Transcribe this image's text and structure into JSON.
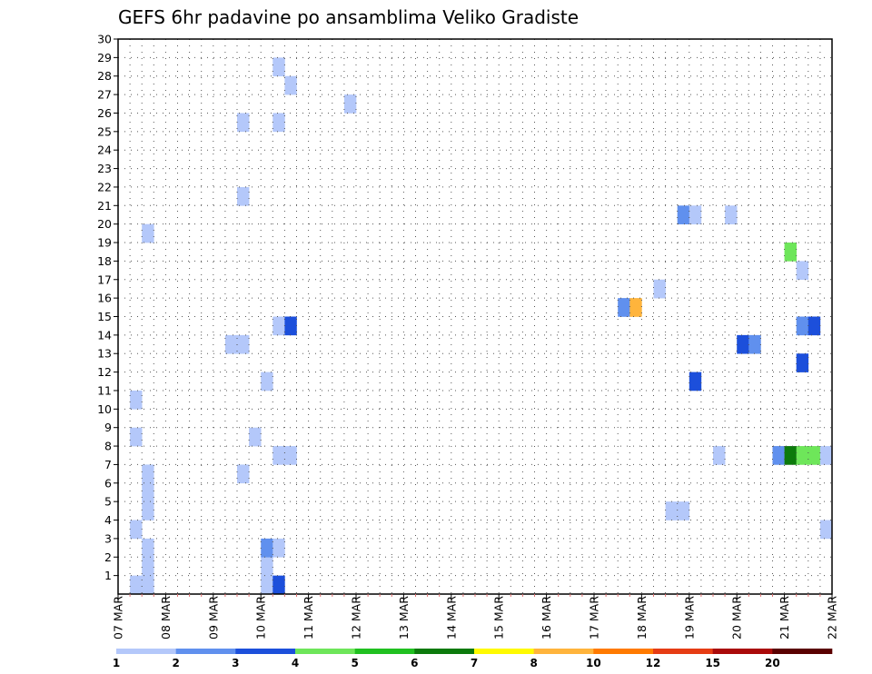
{
  "chart_data": {
    "type": "heatmap",
    "title": "GEFS 6hr padavine po ansamblima Veliko Gradiste",
    "xlabel": "",
    "ylabel": "",
    "x_tick_labels": [
      "07 MAR",
      "08 MAR",
      "09 MAR",
      "10 MAR",
      "11 MAR",
      "12 MAR",
      "13 MAR",
      "14 MAR",
      "15 MAR",
      "16 MAR",
      "17 MAR",
      "18 MAR",
      "19 MAR",
      "20 MAR",
      "21 MAR",
      "22 MAR"
    ],
    "y_tick_labels": [
      "1",
      "2",
      "3",
      "4",
      "5",
      "6",
      "7",
      "8",
      "9",
      "10",
      "11",
      "12",
      "13",
      "14",
      "15",
      "16",
      "17",
      "18",
      "19",
      "20",
      "21",
      "22",
      "23",
      "24",
      "25",
      "26",
      "27",
      "28",
      "29",
      "30"
    ],
    "xlim_days": [
      0,
      15
    ],
    "ylim": [
      0,
      30
    ],
    "time_step_hours": 6,
    "grid": "dotted",
    "legend": {
      "placement": "bottom",
      "labels": [
        "1",
        "2",
        "3",
        "4",
        "5",
        "6",
        "7",
        "8",
        "10",
        "12",
        "15",
        "20"
      ],
      "colors": [
        "#b4c8fa",
        "#6090ee",
        "#1c4fdb",
        "#6ee65a",
        "#20c020",
        "#0c7a0c",
        "#fffa00",
        "#ffb43c",
        "#ff7a00",
        "#e63c14",
        "#aa0a0a",
        "#5a0000"
      ]
    },
    "cells": [
      {
        "day": 0.25,
        "member": 0,
        "color": "#b4c8fa"
      },
      {
        "day": 0.5,
        "member": 0,
        "color": "#b4c8fa"
      },
      {
        "day": 0.25,
        "member": 3,
        "color": "#b4c8fa"
      },
      {
        "day": 0.25,
        "member": 8,
        "color": "#b4c8fa"
      },
      {
        "day": 0.25,
        "member": 10,
        "color": "#b4c8fa"
      },
      {
        "day": 0.5,
        "member": 1,
        "color": "#b4c8fa"
      },
      {
        "day": 0.5,
        "member": 2,
        "color": "#b4c8fa"
      },
      {
        "day": 0.5,
        "member": 4,
        "color": "#b4c8fa"
      },
      {
        "day": 0.5,
        "member": 5,
        "color": "#b4c8fa"
      },
      {
        "day": 0.5,
        "member": 6,
        "color": "#b4c8fa"
      },
      {
        "day": 0.5,
        "member": 19,
        "color": "#b4c8fa"
      },
      {
        "day": 2.25,
        "member": 13,
        "color": "#b4c8fa"
      },
      {
        "day": 2.5,
        "member": 13,
        "color": "#b4c8fa"
      },
      {
        "day": 2.5,
        "member": 6,
        "color": "#b4c8fa"
      },
      {
        "day": 2.5,
        "member": 21,
        "color": "#b4c8fa"
      },
      {
        "day": 2.5,
        "member": 25,
        "color": "#b4c8fa"
      },
      {
        "day": 2.75,
        "member": 8,
        "color": "#b4c8fa"
      },
      {
        "day": 3.0,
        "member": 0,
        "color": "#b4c8fa"
      },
      {
        "day": 3.0,
        "member": 1,
        "color": "#b4c8fa"
      },
      {
        "day": 3.0,
        "member": 2,
        "color": "#6090ee"
      },
      {
        "day": 3.0,
        "member": 11,
        "color": "#b4c8fa"
      },
      {
        "day": 3.25,
        "member": 0,
        "color": "#1c4fdb"
      },
      {
        "day": 3.25,
        "member": 2,
        "color": "#b4c8fa"
      },
      {
        "day": 3.25,
        "member": 7,
        "color": "#b4c8fa"
      },
      {
        "day": 3.5,
        "member": 7,
        "color": "#b4c8fa"
      },
      {
        "day": 3.25,
        "member": 14,
        "color": "#b4c8fa"
      },
      {
        "day": 3.5,
        "member": 14,
        "color": "#1c4fdb"
      },
      {
        "day": 3.25,
        "member": 25,
        "color": "#b4c8fa"
      },
      {
        "day": 3.25,
        "member": 28,
        "color": "#b4c8fa"
      },
      {
        "day": 3.5,
        "member": 27,
        "color": "#b4c8fa"
      },
      {
        "day": 4.75,
        "member": 26,
        "color": "#b4c8fa"
      },
      {
        "day": 10.5,
        "member": 15,
        "color": "#6090ee"
      },
      {
        "day": 10.75,
        "member": 15,
        "color": "#ffb43c"
      },
      {
        "day": 11.25,
        "member": 16,
        "color": "#b4c8fa"
      },
      {
        "day": 11.5,
        "member": 4,
        "color": "#b4c8fa"
      },
      {
        "day": 11.75,
        "member": 4,
        "color": "#b4c8fa"
      },
      {
        "day": 11.75,
        "member": 20,
        "color": "#6090ee"
      },
      {
        "day": 12.0,
        "member": 20,
        "color": "#b4c8fa"
      },
      {
        "day": 12.0,
        "member": 11,
        "color": "#1c4fdb"
      },
      {
        "day": 12.5,
        "member": 7,
        "color": "#b4c8fa"
      },
      {
        "day": 12.75,
        "member": 20,
        "color": "#b4c8fa"
      },
      {
        "day": 13.0,
        "member": 13,
        "color": "#1c4fdb"
      },
      {
        "day": 13.25,
        "member": 13,
        "color": "#6090ee"
      },
      {
        "day": 13.75,
        "member": 7,
        "color": "#6090ee"
      },
      {
        "day": 14.0,
        "member": 7,
        "color": "#0c7a0c"
      },
      {
        "day": 14.0,
        "member": 18,
        "color": "#6ee65a"
      },
      {
        "day": 14.25,
        "member": 7,
        "color": "#6ee65a"
      },
      {
        "day": 14.5,
        "member": 7,
        "color": "#6ee65a"
      },
      {
        "day": 14.75,
        "member": 7,
        "color": "#b4c8fa"
      },
      {
        "day": 14.25,
        "member": 12,
        "color": "#1c4fdb"
      },
      {
        "day": 14.25,
        "member": 14,
        "color": "#6090ee"
      },
      {
        "day": 14.5,
        "member": 14,
        "color": "#1c4fdb"
      },
      {
        "day": 14.25,
        "member": 17,
        "color": "#b4c8fa"
      },
      {
        "day": 14.75,
        "member": 3,
        "color": "#b4c8fa"
      }
    ]
  }
}
